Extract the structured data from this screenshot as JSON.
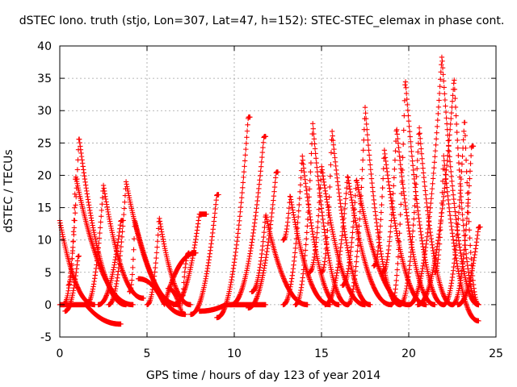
{
  "chart_data": {
    "type": "scatter",
    "title": "dSTEC Iono. truth (stjo, Lon=307, Lat=47, h=152): STEC-STEC_elemax in phase cont.",
    "xlabel": "GPS time / hours of day 123 of year 2014",
    "ylabel": "dSTEC  / TECUs",
    "xlim": [
      0,
      25
    ],
    "ylim": [
      -5,
      40
    ],
    "x_ticks": [
      0,
      5,
      10,
      15,
      20,
      25
    ],
    "y_ticks": [
      -5,
      0,
      5,
      10,
      15,
      20,
      25,
      30,
      35,
      40
    ],
    "x_tick_labels": [
      "0",
      "5",
      "10",
      "15",
      "20",
      "25"
    ],
    "y_tick_labels": [
      "-5",
      "0",
      "5",
      "10",
      "15",
      "20",
      "25",
      "30",
      "35",
      "40"
    ],
    "grid": true,
    "marker": "+",
    "series_color": "#ff0000",
    "arcs": [
      {
        "t0": 0.0,
        "tpk": 0.0,
        "t1": 2.0,
        "ypk": 13,
        "y0": 13,
        "y1": 0
      },
      {
        "t0": 0.0,
        "tpk": 1.5,
        "t1": 3.5,
        "ypk": 0,
        "y0": 0,
        "y1": -3
      },
      {
        "t0": 0.2,
        "tpk": 1.1,
        "t1": 3.8,
        "ypk": 26,
        "y0": 0,
        "y1": 0
      },
      {
        "t0": 0.5,
        "tpk": 0.9,
        "t1": 4.2,
        "ypk": 20,
        "y0": 3,
        "y1": 0
      },
      {
        "t0": 0.3,
        "tpk": 1.05,
        "t1": 1.1,
        "ypk": 7.5,
        "y0": -1,
        "y1": 7.5
      },
      {
        "t0": 1.5,
        "tpk": 2.5,
        "t1": 4.8,
        "ypk": 18.5,
        "y0": 0,
        "y1": 1
      },
      {
        "t0": 2.2,
        "tpk": 3.5,
        "t1": 3.6,
        "ypk": 13,
        "y0": 0,
        "y1": 13
      },
      {
        "t0": 2.8,
        "tpk": 3.8,
        "t1": 6.8,
        "ypk": 19,
        "y0": 0,
        "y1": 0
      },
      {
        "t0": 4.0,
        "tpk": 4.3,
        "t1": 7.2,
        "ypk": 13,
        "y0": 2,
        "y1": -1.5
      },
      {
        "t0": 5.0,
        "tpk": 5.7,
        "t1": 7.5,
        "ypk": 13.5,
        "y0": 0,
        "y1": 0
      },
      {
        "t0": 4.5,
        "tpk": 6.0,
        "t1": 7.8,
        "ypk": 0,
        "y0": 4,
        "y1": 8
      },
      {
        "t0": 6.2,
        "tpk": 7.0,
        "t1": 7.4,
        "ypk": -1.5,
        "y0": 2.5,
        "y1": 8
      },
      {
        "t0": 6.5,
        "tpk": 8.0,
        "t1": 8.4,
        "ypk": 14,
        "y0": 0,
        "y1": 14
      },
      {
        "t0": 7.5,
        "tpk": 9.0,
        "t1": 9.1,
        "ypk": 17,
        "y0": -1.5,
        "y1": 17
      },
      {
        "t0": 8.0,
        "tpk": 9.5,
        "t1": 11.8,
        "ypk": 0,
        "y0": -1,
        "y1": 0
      },
      {
        "t0": 9.0,
        "tpk": 10.8,
        "t1": 10.9,
        "ypk": 29,
        "y0": -2,
        "y1": 29
      },
      {
        "t0": 9.8,
        "tpk": 11.7,
        "t1": 11.8,
        "ypk": 26,
        "y0": 0,
        "y1": 26
      },
      {
        "t0": 10.8,
        "tpk": 12.4,
        "t1": 12.5,
        "ypk": 20.5,
        "y0": -0.5,
        "y1": 20.5
      },
      {
        "t0": 11.0,
        "tpk": 11.8,
        "t1": 14.2,
        "ypk": 14,
        "y0": 2,
        "y1": 0
      },
      {
        "t0": 12.8,
        "tpk": 13.2,
        "t1": 15.5,
        "ypk": 17,
        "y0": 10,
        "y1": 0
      },
      {
        "t0": 12.8,
        "tpk": 13.9,
        "t1": 16.0,
        "ypk": 23,
        "y0": 0,
        "y1": 0
      },
      {
        "t0": 13.5,
        "tpk": 14.5,
        "t1": 16.5,
        "ypk": 28,
        "y0": 0,
        "y1": 0
      },
      {
        "t0": 14.3,
        "tpk": 15.0,
        "t1": 17.5,
        "ypk": 21.5,
        "y0": 5,
        "y1": 0
      },
      {
        "t0": 15.0,
        "tpk": 15.6,
        "t1": 17.8,
        "ypk": 27,
        "y0": 5,
        "y1": 0
      },
      {
        "t0": 15.2,
        "tpk": 16.5,
        "t1": 19.0,
        "ypk": 20,
        "y0": 0,
        "y1": 0
      },
      {
        "t0": 16.5,
        "tpk": 17.5,
        "t1": 19.5,
        "ypk": 30.5,
        "y0": 0,
        "y1": 0
      },
      {
        "t0": 16.2,
        "tpk": 17.0,
        "t1": 20.0,
        "ypk": 19.5,
        "y0": 3,
        "y1": 0
      },
      {
        "t0": 18.0,
        "tpk": 18.6,
        "t1": 21.0,
        "ypk": 24,
        "y0": 6,
        "y1": 0
      },
      {
        "t0": 18.5,
        "tpk": 19.3,
        "t1": 21.5,
        "ypk": 27.5,
        "y0": 5,
        "y1": 0
      },
      {
        "t0": 19.0,
        "tpk": 19.8,
        "t1": 22.0,
        "ypk": 35,
        "y0": 0,
        "y1": 0
      },
      {
        "t0": 19.5,
        "tpk": 20.6,
        "t1": 22.5,
        "ypk": 27.5,
        "y0": 0,
        "y1": 0
      },
      {
        "t0": 20.0,
        "tpk": 21.9,
        "t1": 24.0,
        "ypk": 38.5,
        "y0": 0,
        "y1": 0
      },
      {
        "t0": 20.5,
        "tpk": 22.6,
        "t1": 24.0,
        "ypk": 35,
        "y0": 0,
        "y1": 0
      },
      {
        "t0": 21.5,
        "tpk": 22.0,
        "t1": 24.0,
        "ypk": 23,
        "y0": 5,
        "y1": -2.5
      },
      {
        "t0": 22.0,
        "tpk": 23.2,
        "t1": 24.0,
        "ypk": 29,
        "y0": 0,
        "y1": 0
      },
      {
        "t0": 22.5,
        "tpk": 23.6,
        "t1": 23.7,
        "ypk": 24.5,
        "y0": 0,
        "y1": 24.5
      },
      {
        "t0": 22.8,
        "tpk": 24.0,
        "t1": 24.1,
        "ypk": 12,
        "y0": 0,
        "y1": 12
      }
    ]
  }
}
